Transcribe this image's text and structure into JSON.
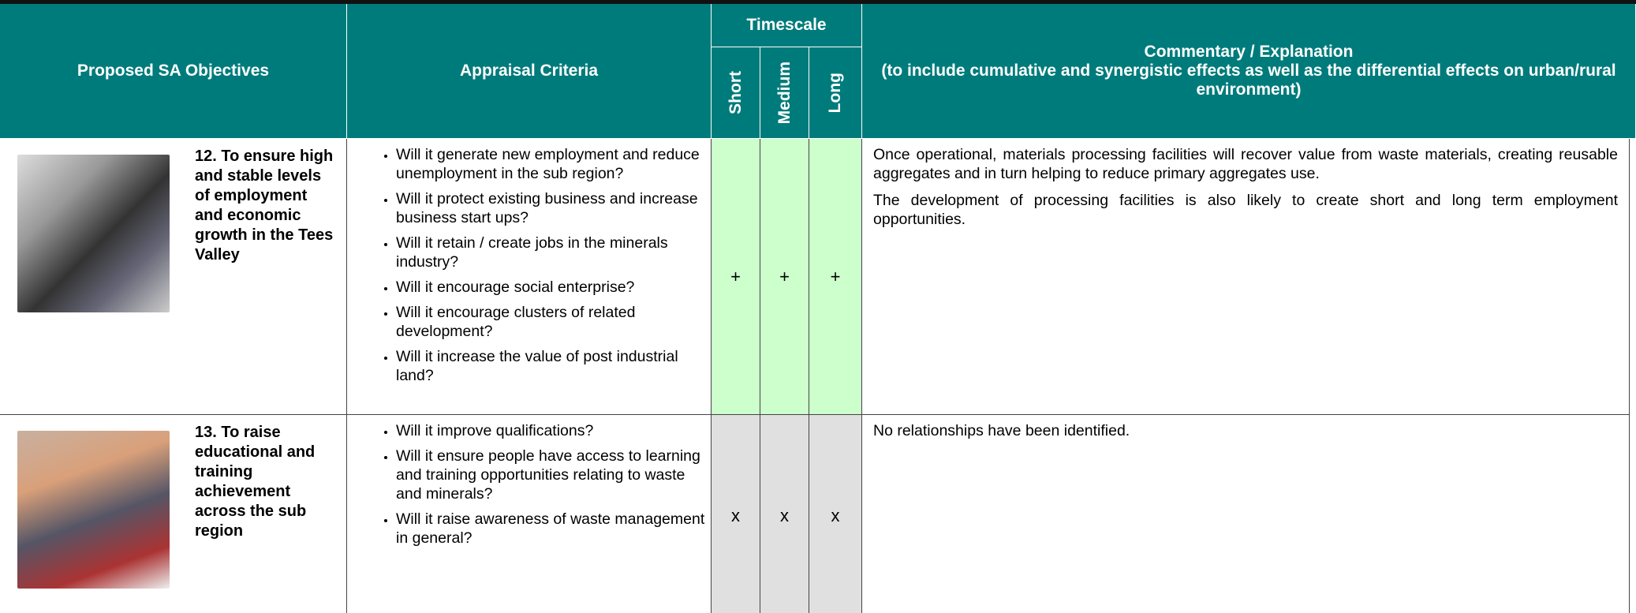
{
  "header": {
    "objectives": "Proposed SA Objectives",
    "criteria": "Appraisal Criteria",
    "timescale": "Timescale",
    "short": "Short",
    "medium": "Medium",
    "long": "Long",
    "commentary_title": "Commentary / Explanation",
    "commentary_subtitle": "(to include cumulative and synergistic effects as well as the differential effects on urban/rural environment)"
  },
  "rows": [
    {
      "objective": "12. To ensure high and stable levels of employment and economic growth in the Tees Valley",
      "criteria": [
        "Will it generate new employment and reduce unemployment in the sub region?",
        "Will it protect existing business and increase business start ups?",
        "Will it retain / create jobs in the minerals industry?",
        "Will it encourage social enterprise?",
        "Will it encourage clusters of related development?",
        "Will it increase the value of post industrial land?"
      ],
      "scores": [
        "+",
        "+",
        "+"
      ],
      "commentary": [
        "Once operational, materials processing facilities will recover value from waste materials, creating reusable aggregates and in turn helping to reduce primary aggregates use.",
        "The development of processing facilities is also likely to create short and long term employment opportunities."
      ]
    },
    {
      "objective": "13. To raise educational and training achievement across the sub region",
      "criteria": [
        "Will it improve qualifications?",
        "Will it ensure people have access to learning and training opportunities relating to waste and minerals?",
        "Will it raise awareness of waste management in general?"
      ],
      "scores": [
        "x",
        "x",
        "x"
      ],
      "commentary": [
        "No relationships have been identified."
      ]
    }
  ]
}
